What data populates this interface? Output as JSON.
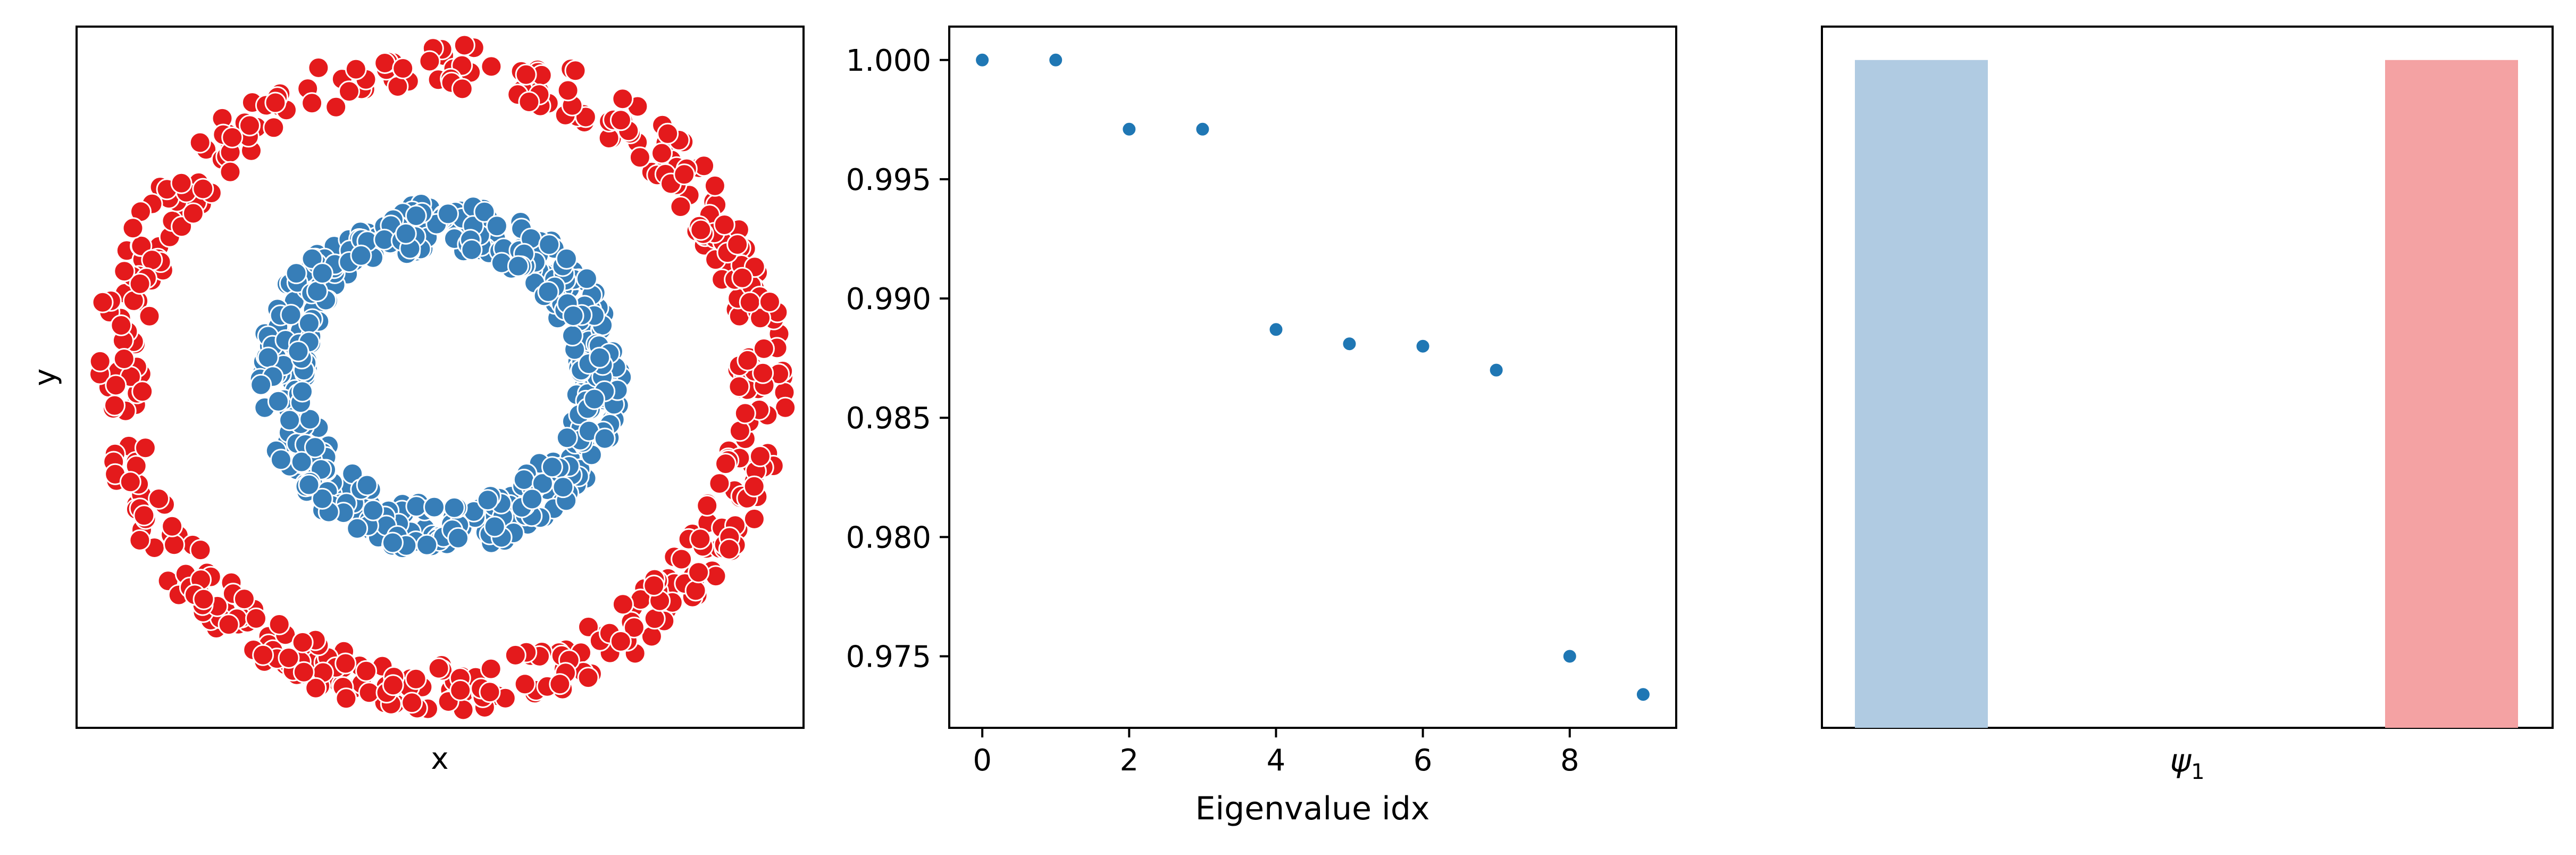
{
  "chart_data": [
    {
      "type": "scatter",
      "xlabel": "x",
      "ylabel": "y",
      "xlim": [
        -1.1,
        1.1
      ],
      "ylim": [
        -1.1,
        1.1
      ],
      "ticks_visible": false,
      "grid": false,
      "series": [
        {
          "color": "#e41a1c",
          "shape": "ring",
          "radius_range": [
            0.9,
            1.05
          ],
          "n_points": 500
        },
        {
          "color": "#377eb8",
          "shape": "ring",
          "radius_range": [
            0.4,
            0.55
          ],
          "n_points": 500
        }
      ]
    },
    {
      "type": "scatter",
      "xlabel": "Eigenvalue idx",
      "ylabel": "",
      "x": [
        0,
        1,
        2,
        3,
        4,
        5,
        6,
        7,
        8,
        9
      ],
      "y": [
        1.0,
        1.0,
        0.9971,
        0.9971,
        0.9887,
        0.9881,
        0.988,
        0.987,
        0.975,
        0.9734
      ],
      "xlim": [
        -0.45,
        9.45
      ],
      "ylim": [
        0.972,
        1.0014
      ],
      "xticks": [
        "0",
        "2",
        "4",
        "6",
        "8"
      ],
      "yticks": [
        "0.975",
        "0.980",
        "0.985",
        "0.990",
        "0.995",
        "1.000"
      ],
      "color": "#1f77b4",
      "grid": false
    },
    {
      "type": "bar",
      "xlabel": "ψ",
      "xlabel_sub": "1",
      "categories": [
        "",
        ""
      ],
      "values": [
        1,
        1
      ],
      "ylim": [
        0,
        1.05
      ],
      "colors": [
        "#b0cbe2",
        "#f4a2a3"
      ],
      "ticks_visible": false,
      "grid": false
    }
  ]
}
